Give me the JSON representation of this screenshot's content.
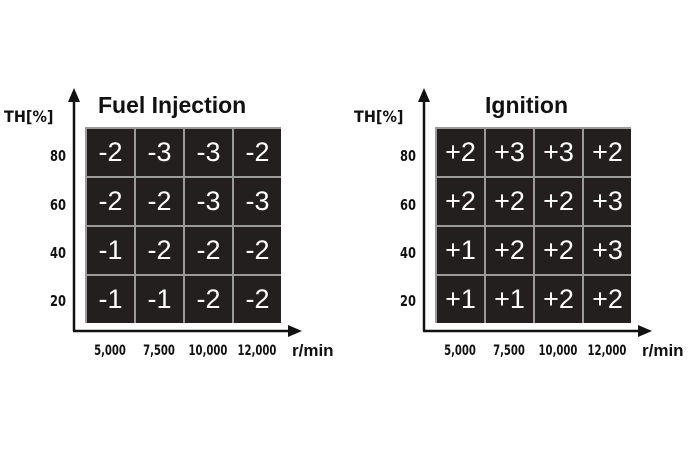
{
  "chart_data": [
    {
      "type": "heatmap",
      "title": "Fuel Injection",
      "ylabel": "TH[%]",
      "xlabel": "r/min",
      "x": [
        "5,000",
        "7,500",
        "10,000",
        "12,000"
      ],
      "y": [
        "80",
        "60",
        "40",
        "20"
      ],
      "values": [
        [
          "-2",
          "-3",
          "-3",
          "-2"
        ],
        [
          "-2",
          "-2",
          "-3",
          "-3"
        ],
        [
          "-1",
          "-2",
          "-2",
          "-2"
        ],
        [
          "-1",
          "-1",
          "-2",
          "-2"
        ]
      ]
    },
    {
      "type": "heatmap",
      "title": "Ignition",
      "ylabel": "TH[%]",
      "xlabel": "r/min",
      "x": [
        "5,000",
        "7,500",
        "10,000",
        "12,000"
      ],
      "y": [
        "80",
        "60",
        "40",
        "20"
      ],
      "values": [
        [
          "+2",
          "+3",
          "+3",
          "+2"
        ],
        [
          "+2",
          "+2",
          "+2",
          "+3"
        ],
        [
          "+1",
          "+2",
          "+2",
          "+3"
        ],
        [
          "+1",
          "+1",
          "+2",
          "+2"
        ]
      ]
    }
  ],
  "colors": {
    "cell_bg": "#231f1e",
    "cell_text": "#ffffff",
    "grid_line": "#9a9a9a",
    "axis": "#111111"
  }
}
